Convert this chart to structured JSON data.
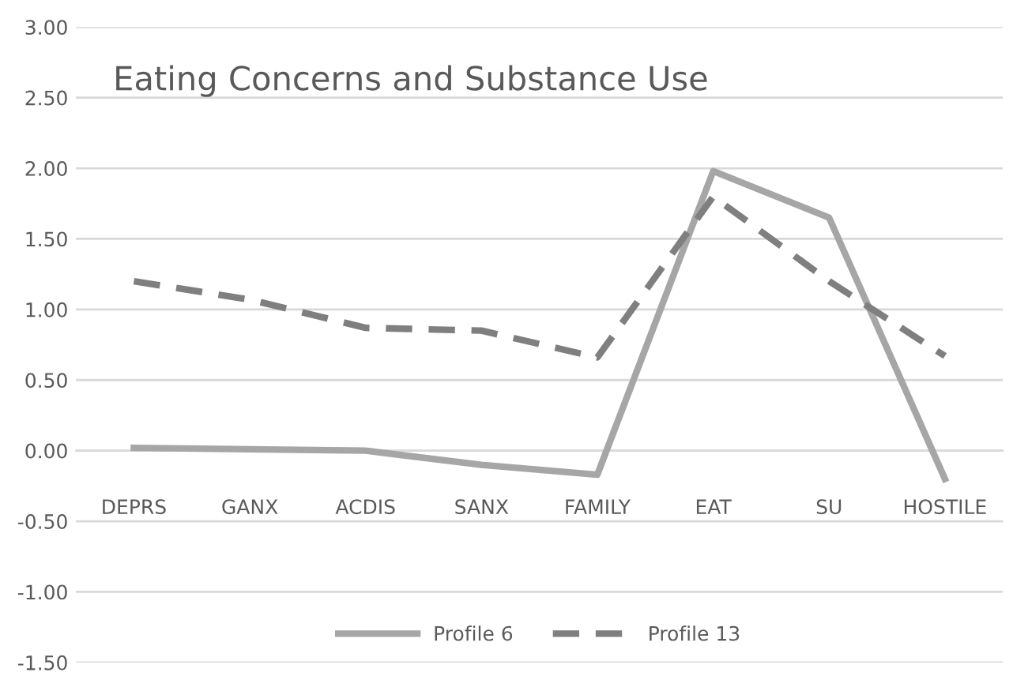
{
  "chart_data": {
    "type": "line",
    "title": "Eating Concerns and Substance Use",
    "categories": [
      "DEPRS",
      "GANX",
      "ACDIS",
      "SANX",
      "FAMILY",
      "EAT",
      "SU",
      "HOSTILE"
    ],
    "series": [
      {
        "name": "Profile 6",
        "color": "#a6a6a6",
        "line_style": "solid",
        "values": [
          0.02,
          0.01,
          0.0,
          -0.1,
          -0.17,
          1.98,
          1.65,
          -0.2
        ]
      },
      {
        "name": "Profile 13",
        "color": "#7f7f7f",
        "line_style": "dashed",
        "values": [
          1.2,
          1.07,
          0.87,
          0.85,
          0.66,
          1.8,
          1.2,
          0.67
        ]
      }
    ],
    "ylim": [
      -1.5,
      3.0
    ],
    "yticks": [
      {
        "value": -1.5,
        "label": "-1.50"
      },
      {
        "value": -1.0,
        "label": "-1.00"
      },
      {
        "value": -0.5,
        "label": "-0.50"
      },
      {
        "value": 0.0,
        "label": "0.00"
      },
      {
        "value": 0.5,
        "label": "0.50"
      },
      {
        "value": 1.0,
        "label": "1.00"
      },
      {
        "value": 1.5,
        "label": "1.50"
      },
      {
        "value": 2.0,
        "label": "2.00"
      },
      {
        "value": 2.5,
        "label": "2.50"
      },
      {
        "value": 3.0,
        "label": "3.00"
      }
    ],
    "grid": "y",
    "legend": "bottom",
    "marker": "none"
  }
}
